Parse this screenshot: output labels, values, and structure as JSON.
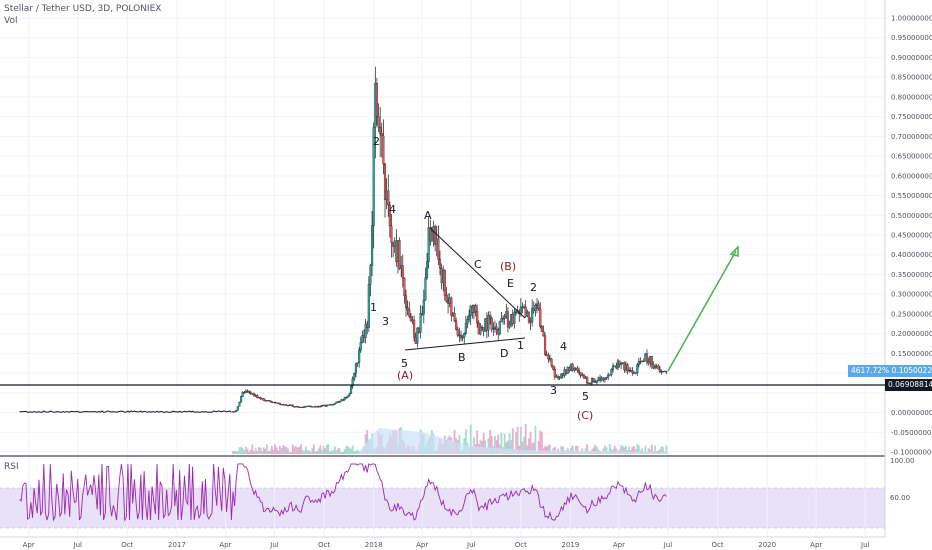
{
  "legend": {
    "title": "Stellar / Tether USD, 3D, POLONIEX",
    "volume_label": "Vol"
  },
  "rsi_panel": {
    "label": "RSI",
    "axis_ticks": [
      "100.00",
      "60.00"
    ]
  },
  "price_axis": {
    "ticks": [
      "1.00000000",
      "0.95000000",
      "0.90000000",
      "0.85000000",
      "0.80000000",
      "0.75000000",
      "0.70000000",
      "0.65000000",
      "0.60000000",
      "0.55000000",
      "0.50000000",
      "0.45000000",
      "0.40000000",
      "0.35000000",
      "0.30000000",
      "0.25000000",
      "0.20000000",
      "0.15000000",
      "0.10500000",
      "0.06908814",
      "0.00000000",
      "-0.05000000",
      "-0.10000000"
    ],
    "current_percent": "4617.72%",
    "current_price": "0.10500227",
    "horizontal_level": "0.06908814"
  },
  "time_axis": {
    "ticks": [
      "Apr",
      "Jul",
      "Oct",
      "2017",
      "Apr",
      "Jul",
      "Oct",
      "2018",
      "Apr",
      "Jul",
      "Oct",
      "2019",
      "Apr",
      "Jul",
      "Oct",
      "2020",
      "Apr",
      "Jul"
    ]
  },
  "wave_labels": {
    "w1": "1",
    "w2": "2",
    "w3": "3",
    "w4": "4",
    "w5": "5",
    "wA_paren": "(A)",
    "a": "A",
    "b": "B",
    "c": "C",
    "d": "D",
    "e": "E",
    "wB_paren": "(B)",
    "n1": "1",
    "n2": "2",
    "n3": "3",
    "n4": "4",
    "n5": "5",
    "wC_paren": "(C)"
  },
  "colors": {
    "up": "#26a69a",
    "down": "#ef5350",
    "vol_up": "#a5dcd0",
    "vol_down": "#eeaad0",
    "rsi_line": "#9c27b0",
    "rsi_band": "#e8e1f7",
    "forecast_arrow": "#4caf50",
    "wave_red": "#8b1a1a",
    "axis_text": "#50535e",
    "support_line": "#131722",
    "badge_blue": "#5aa9ea"
  },
  "chart_data": {
    "type": "line",
    "title": "Stellar / Tether USD, 3D, POLONIEX",
    "xlabel": "",
    "ylabel": "",
    "ylim": [
      -0.1,
      1.0
    ],
    "series": [
      {
        "name": "Stellar / Tether USD",
        "x": [
          "2016-03",
          "2016-06",
          "2016-09",
          "2016-12",
          "2017-03",
          "2017-04-20",
          "2017-05-05",
          "2017-06",
          "2017-07",
          "2017-08",
          "2017-09",
          "2017-10",
          "2017-11",
          "2017-12-05",
          "2017-12-20",
          "2017-12-28",
          "2018-01-03",
          "2018-01-10",
          "2018-01-18",
          "2018-01-28",
          "2018-02-06",
          "2018-02-15",
          "2018-02-28",
          "2018-03-10",
          "2018-03-20",
          "2018-04-01",
          "2018-04-10",
          "2018-04-20",
          "2018-05-01",
          "2018-05-15",
          "2018-06-01",
          "2018-06-15",
          "2018-07-01",
          "2018-07-15",
          "2018-08-01",
          "2018-08-15",
          "2018-09-01",
          "2018-09-15",
          "2018-10-01",
          "2018-10-15",
          "2018-11-01",
          "2018-11-15",
          "2018-12-01",
          "2018-12-15",
          "2019-01-01",
          "2019-01-15",
          "2019-02-01",
          "2019-02-15",
          "2019-03-01",
          "2019-03-15",
          "2019-04-01",
          "2019-04-15",
          "2019-05-01",
          "2019-05-15",
          "2019-06-01",
          "2019-06-15",
          "2019-06-28"
        ],
        "values": [
          0.002,
          0.002,
          0.002,
          0.002,
          0.002,
          0.003,
          0.055,
          0.03,
          0.02,
          0.015,
          0.015,
          0.02,
          0.04,
          0.15,
          0.23,
          0.42,
          0.92,
          0.72,
          0.62,
          0.5,
          0.4,
          0.42,
          0.3,
          0.24,
          0.18,
          0.25,
          0.42,
          0.47,
          0.4,
          0.3,
          0.22,
          0.19,
          0.29,
          0.2,
          0.23,
          0.2,
          0.24,
          0.23,
          0.26,
          0.24,
          0.27,
          0.16,
          0.1,
          0.09,
          0.12,
          0.1,
          0.08,
          0.08,
          0.09,
          0.1,
          0.13,
          0.11,
          0.1,
          0.14,
          0.13,
          0.1,
          0.105
        ]
      }
    ]
  }
}
